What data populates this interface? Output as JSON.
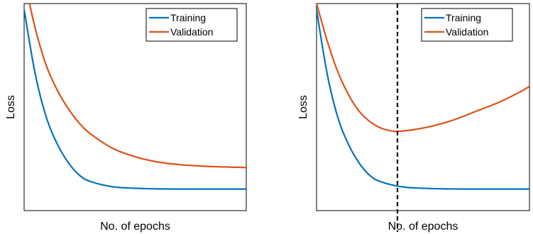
{
  "colors": {
    "training": "#0072BD",
    "validation": "#D95319",
    "axes": "#000000",
    "background": "#ffffff"
  },
  "chart_data": [
    {
      "type": "line",
      "xlabel": "No. of epochs",
      "ylabel": "Loss",
      "xlim": [
        0,
        100
      ],
      "ylim": [
        0,
        1
      ],
      "grid": false,
      "legend_position": "top-right",
      "x_ticks_shown": false,
      "y_ticks_shown": false,
      "series": [
        {
          "name": "Training",
          "x": [
            0,
            5,
            10,
            15,
            20,
            25,
            30,
            40,
            50,
            60,
            70,
            80,
            90,
            100
          ],
          "y": [
            0.97,
            0.66,
            0.45,
            0.32,
            0.23,
            0.17,
            0.14,
            0.115,
            0.108,
            0.105,
            0.104,
            0.104,
            0.104,
            0.104
          ]
        },
        {
          "name": "Validation",
          "x": [
            0,
            5,
            10,
            15,
            20,
            25,
            30,
            40,
            50,
            60,
            70,
            80,
            90,
            100
          ],
          "y": [
            1.12,
            0.88,
            0.7,
            0.58,
            0.49,
            0.42,
            0.37,
            0.3,
            0.26,
            0.235,
            0.222,
            0.215,
            0.211,
            0.208
          ]
        }
      ]
    },
    {
      "type": "line",
      "xlabel": "No. of epochs",
      "ylabel": "Loss",
      "xlim": [
        0,
        100
      ],
      "ylim": [
        0,
        1
      ],
      "grid": false,
      "legend_position": "top-right",
      "x_ticks_shown": false,
      "y_ticks_shown": false,
      "vline_x": 38,
      "series": [
        {
          "name": "Training",
          "x": [
            0,
            5,
            10,
            15,
            20,
            25,
            30,
            40,
            50,
            60,
            70,
            80,
            90,
            100
          ],
          "y": [
            0.97,
            0.66,
            0.45,
            0.32,
            0.23,
            0.17,
            0.14,
            0.115,
            0.108,
            0.105,
            0.104,
            0.104,
            0.104,
            0.104
          ]
        },
        {
          "name": "Validation",
          "x": [
            0,
            5,
            10,
            15,
            20,
            25,
            30,
            35,
            38,
            45,
            55,
            65,
            75,
            85,
            95,
            100
          ],
          "y": [
            1.0,
            0.82,
            0.67,
            0.56,
            0.48,
            0.43,
            0.4,
            0.385,
            0.383,
            0.39,
            0.41,
            0.44,
            0.48,
            0.52,
            0.57,
            0.6
          ]
        }
      ]
    }
  ]
}
